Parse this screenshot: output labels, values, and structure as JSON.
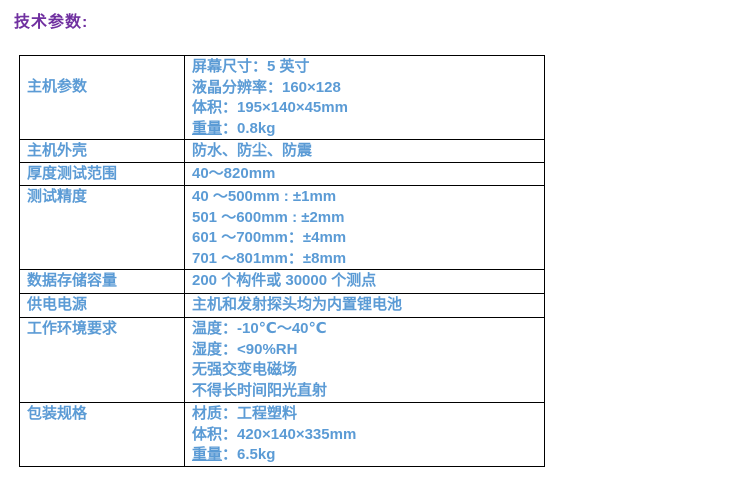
{
  "page": {
    "title": "技术参数:"
  },
  "colors": {
    "title_text": "#7030A0",
    "table_text": "#5B9BD5",
    "table_border": "#000000",
    "background": "#FFFFFF"
  },
  "table": {
    "rows": [
      {
        "label": "主机参数",
        "lines": [
          [
            {
              "text": "屏幕尺寸：5 英寸"
            }
          ],
          [
            {
              "text": "液晶分辨率：160×128"
            }
          ],
          [
            {
              "text": "体积：195×140×45mm"
            }
          ],
          [
            {
              "text": "重量",
              "underline": true
            },
            {
              "text": "：0.8kg"
            }
          ]
        ]
      },
      {
        "label": "主机外壳",
        "lines": [
          [
            {
              "text": "防水、防尘、防震"
            }
          ]
        ]
      },
      {
        "label": "厚度测试范围",
        "lines": [
          [
            {
              "text": "40～820mm"
            }
          ]
        ]
      },
      {
        "label": "测试精度",
        "lines": [
          [
            {
              "text": "40 ～500mm : ±1mm"
            }
          ],
          [
            {
              "text": "501 ～600mm : ±2mm"
            }
          ],
          [
            {
              "text": "601 ～700mm：±4mm"
            }
          ],
          [
            {
              "text": "701 ～801mm：±8mm"
            }
          ]
        ]
      },
      {
        "label": "数据存储容量",
        "lines": [
          [
            {
              "text": "200 个构件或 30000 个测点"
            }
          ]
        ]
      },
      {
        "label": "供电电源",
        "lines": [
          [
            {
              "text": "主机和发射探头均为内置锂电池"
            }
          ]
        ]
      },
      {
        "label": "工作环境要求",
        "lines": [
          [
            {
              "text": "温度：-10℃～40℃"
            }
          ],
          [
            {
              "text": "湿度：<90%RH"
            }
          ],
          [
            {
              "text": "无强交变电磁场"
            }
          ],
          [
            {
              "text": "不得长时间阳光直射"
            }
          ]
        ]
      },
      {
        "label": "包装规格",
        "lines": [
          [
            {
              "text": "材质：工程塑料"
            }
          ],
          [
            {
              "text": "体积：420×140×335mm"
            }
          ],
          [
            {
              "text": "重量",
              "underline": true
            },
            {
              "text": "：6.5kg"
            }
          ]
        ]
      }
    ]
  }
}
